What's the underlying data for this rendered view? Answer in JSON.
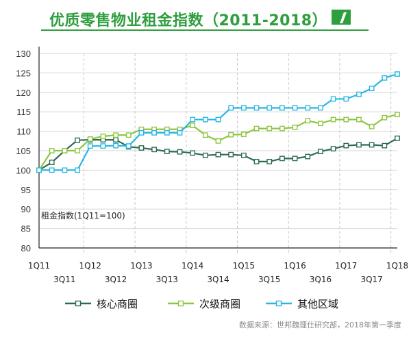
{
  "title": "优质零售物业租金指数（2011-2018）",
  "source": "数据来源：世邦魏理仕研究部，2018年第一季度",
  "colors": {
    "title": "#2e9e3e",
    "core": "#2d6b4f",
    "secondary": "#8cc63f",
    "other": "#29b6e3",
    "grid": "#b8b8b8"
  },
  "chart_data": {
    "type": "line",
    "ylabel": "租金指数(1Q11=100)",
    "ylim": [
      80,
      130
    ],
    "yticks": [
      "130",
      "125",
      "120",
      "115",
      "110",
      "105",
      "100",
      "95",
      "90",
      "85",
      "80"
    ],
    "grid": "vertical dashed dividers by year",
    "legend_position": "bottom-center",
    "x_axis_labels_row1": [
      "1Q11",
      "1Q12",
      "1Q13",
      "1Q14",
      "1Q15",
      "1Q16",
      "1Q17",
      "1Q18"
    ],
    "x_axis_labels_row2": [
      "3Q11",
      "3Q12",
      "3Q13",
      "3Q14",
      "3Q15",
      "3Q16",
      "3Q17"
    ],
    "categories": [
      "1Q11",
      "2Q11",
      "3Q11",
      "4Q11",
      "1Q12",
      "2Q12",
      "3Q12",
      "4Q12",
      "1Q13",
      "2Q13",
      "3Q13",
      "4Q13",
      "1Q14",
      "2Q14",
      "3Q14",
      "4Q14",
      "1Q15",
      "2Q15",
      "3Q15",
      "4Q15",
      "1Q16",
      "2Q16",
      "3Q16",
      "4Q16",
      "1Q17",
      "2Q17",
      "3Q17",
      "4Q17",
      "1Q18"
    ],
    "series": [
      {
        "name": "核心商圈",
        "color": "#2d6b4f",
        "values": [
          100,
          102,
          105,
          107.7,
          107.8,
          107.8,
          107.8,
          106,
          105.7,
          105.3,
          104.8,
          104.7,
          104.4,
          103.8,
          104,
          104,
          103.8,
          102.2,
          102.2,
          103,
          103,
          103.5,
          104.8,
          105.5,
          106.3,
          106.5,
          106.5,
          106.3,
          108.2
        ]
      },
      {
        "name": "次级商圈",
        "color": "#8cc63f",
        "values": [
          100,
          105,
          105,
          105,
          108,
          108.7,
          109,
          109,
          110.5,
          110.5,
          110.5,
          110.5,
          111.5,
          109,
          107.5,
          109.1,
          109.2,
          110.7,
          110.7,
          110.7,
          111,
          112.7,
          112,
          113,
          113,
          113,
          111.2,
          113.5,
          114.3
        ]
      },
      {
        "name": "其他区域",
        "color": "#29b6e3",
        "values": [
          100,
          100,
          100,
          100,
          106.2,
          106.2,
          106.3,
          106.2,
          109.6,
          109.6,
          109.6,
          109.6,
          113,
          113,
          113,
          116,
          116,
          116,
          116,
          116,
          116,
          116,
          116,
          118.3,
          118.3,
          119.5,
          121,
          123.7,
          124.7
        ]
      }
    ]
  }
}
